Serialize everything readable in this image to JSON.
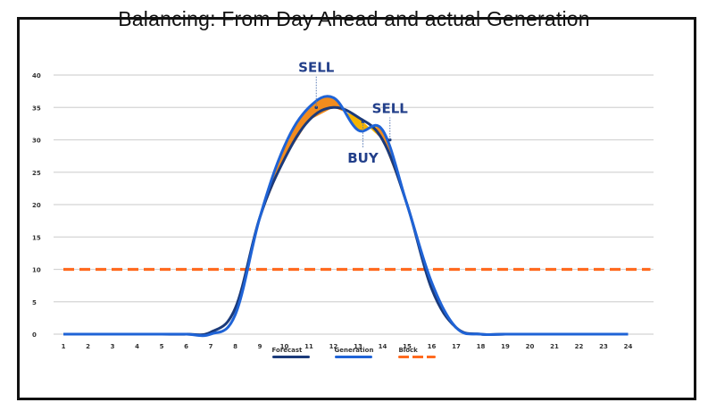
{
  "chart_data": {
    "type": "line",
    "title": "Balancing: From Day Ahead and actual Generation",
    "xlabel": "",
    "ylabel": "",
    "x": [
      1,
      2,
      3,
      4,
      5,
      6,
      7,
      8,
      9,
      10,
      11,
      12,
      13,
      14,
      15,
      16,
      17,
      18,
      19,
      20,
      21,
      22,
      23,
      24
    ],
    "ylim": [
      0,
      40
    ],
    "yticks": [
      0,
      5,
      10,
      15,
      20,
      25,
      30,
      35,
      40
    ],
    "grid": true,
    "legend_position": "bottom",
    "series": [
      {
        "name": "Forecast",
        "color": "#1b3a7a",
        "values": [
          0,
          0,
          0,
          0,
          0,
          0,
          0.3,
          4,
          18,
          27,
          33,
          35,
          33.5,
          30,
          20,
          7,
          1,
          0,
          0,
          0,
          0,
          0,
          0,
          0
        ]
      },
      {
        "name": "Generation",
        "color": "#1f63d6",
        "values": [
          0,
          0,
          0,
          0,
          0,
          0,
          0,
          3,
          18,
          29,
          35,
          36.5,
          31.5,
          31.5,
          20,
          8,
          1,
          0,
          0,
          0,
          0,
          0,
          0,
          0
        ]
      },
      {
        "name": "Block",
        "color": "#ff6a1f",
        "style": "dashed",
        "values": [
          10,
          10,
          10,
          10,
          10,
          10,
          10,
          10,
          10,
          10,
          10,
          10,
          10,
          10,
          10,
          10,
          10,
          10,
          10,
          10,
          10,
          10,
          10,
          10
        ]
      }
    ],
    "annotations": [
      {
        "text": "SELL",
        "x": 11.3,
        "y": 35,
        "position": "above",
        "fill": "#f28c1e"
      },
      {
        "text": "BUY",
        "x": 13.2,
        "y": 32.8,
        "position": "below",
        "fill": "#f5b400"
      },
      {
        "text": "SELL",
        "x": 14.3,
        "y": 30,
        "position": "above",
        "fill": "#f28c1e"
      }
    ]
  },
  "legend": {
    "items": [
      {
        "label": "Forecast",
        "color": "#1b3a7a"
      },
      {
        "label": "Generation",
        "color": "#1f63d6"
      },
      {
        "label": "Block",
        "color": "#ff6a1f"
      }
    ]
  }
}
